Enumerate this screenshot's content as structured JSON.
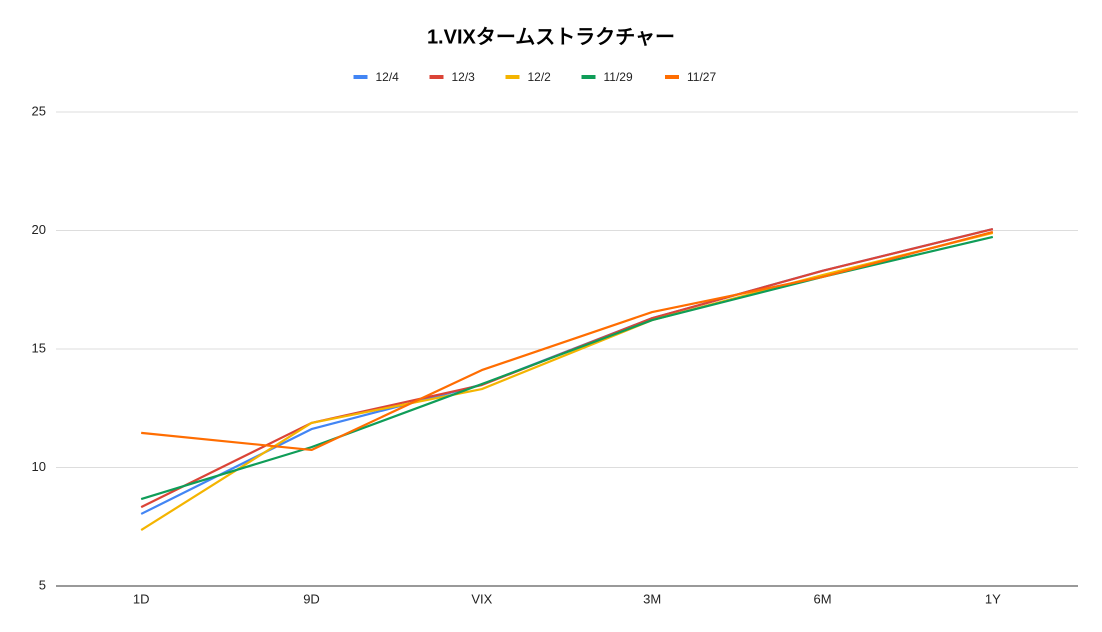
{
  "chart_data": {
    "type": "line",
    "title": "1.VIXタームストラクチャー",
    "categories": [
      "1D",
      "9D",
      "VIX",
      "3M",
      "6M",
      "1Y"
    ],
    "series": [
      {
        "name": "12/4",
        "color": "#4285f4",
        "values": [
          8.04,
          11.62,
          13.5,
          16.3,
          18.3,
          20.06
        ]
      },
      {
        "name": "12/3",
        "color": "#db4437",
        "values": [
          8.33,
          11.88,
          13.48,
          16.3,
          18.3,
          20.06
        ]
      },
      {
        "name": "12/2",
        "color": "#f4b400",
        "values": [
          7.36,
          11.88,
          13.31,
          16.22,
          18.12,
          19.9
        ]
      },
      {
        "name": "11/29",
        "color": "#0f9d58",
        "values": [
          8.67,
          10.86,
          13.52,
          16.22,
          18.04,
          19.73
        ]
      },
      {
        "name": "11/27",
        "color": "#ff6d01",
        "values": [
          11.46,
          10.74,
          14.11,
          16.56,
          18.04,
          19.94
        ]
      }
    ],
    "ylim": [
      5,
      25
    ],
    "yticks": [
      5,
      10,
      15,
      20,
      25
    ],
    "grid": true,
    "legend": "top"
  }
}
